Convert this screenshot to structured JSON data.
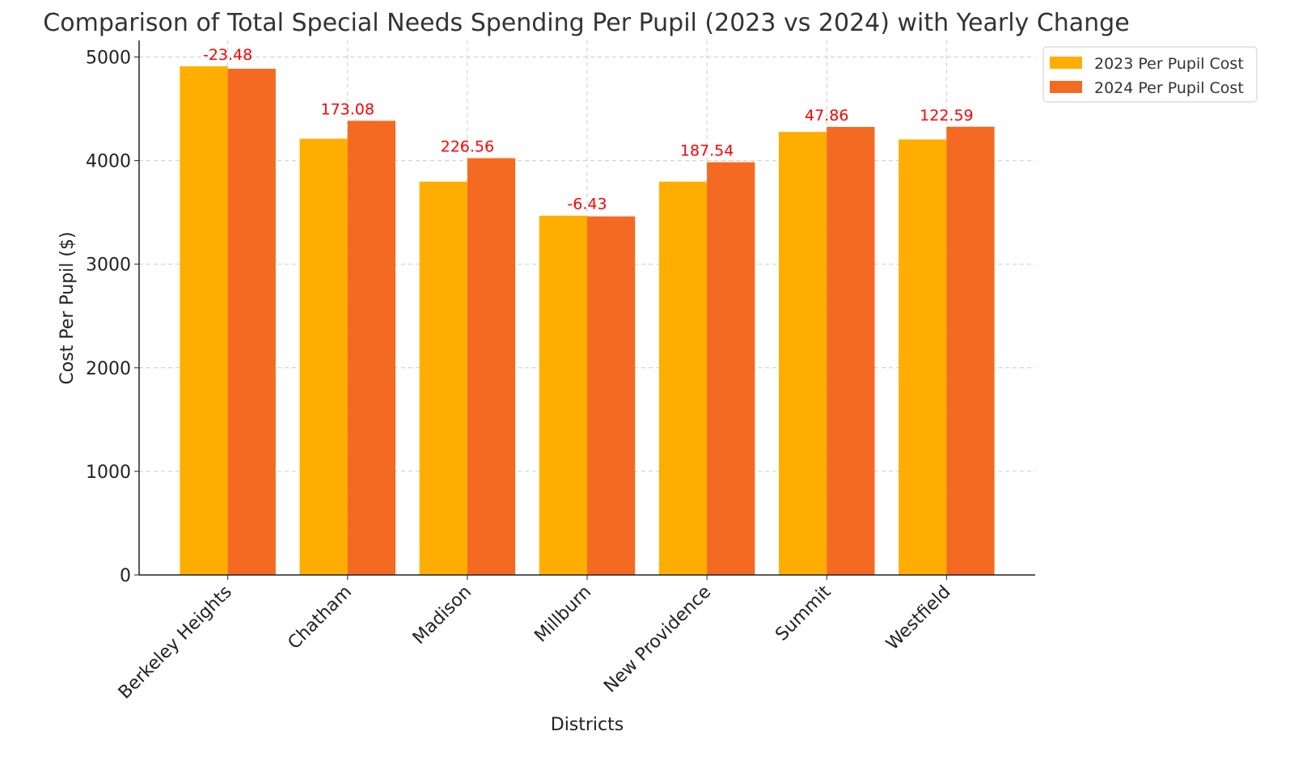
{
  "chart_data": {
    "type": "bar",
    "title": "Comparison of Total Special Needs Spending Per Pupil (2023 vs 2024) with Yearly Change",
    "xlabel": "Districts",
    "ylabel": "Cost Per Pupil ($)",
    "categories": [
      "Berkeley Heights",
      "Chatham",
      "Madison",
      "Millburn",
      "New Providence",
      "Summit",
      "Westfield"
    ],
    "series": [
      {
        "name": "2023 Per Pupil Cost",
        "color": "#FFAE00",
        "values": [
          4910,
          4211,
          3797,
          3468,
          3797,
          4277,
          4204
        ]
      },
      {
        "name": "2024 Per Pupil Cost",
        "color": "#F56A22",
        "values": [
          4886.52,
          4384.08,
          4023.56,
          3461.57,
          3984.54,
          4324.86,
          4326.59
        ]
      }
    ],
    "annotations": [
      "-23.48",
      "173.08",
      "226.56",
      "-6.43",
      "187.54",
      "47.86",
      "122.59"
    ],
    "annotation_color": "#FF0000",
    "yticks": [
      0,
      1000,
      2000,
      3000,
      4000,
      5000
    ],
    "ylim": [
      0,
      5160
    ],
    "grid": true,
    "legend_position": "top-right"
  }
}
